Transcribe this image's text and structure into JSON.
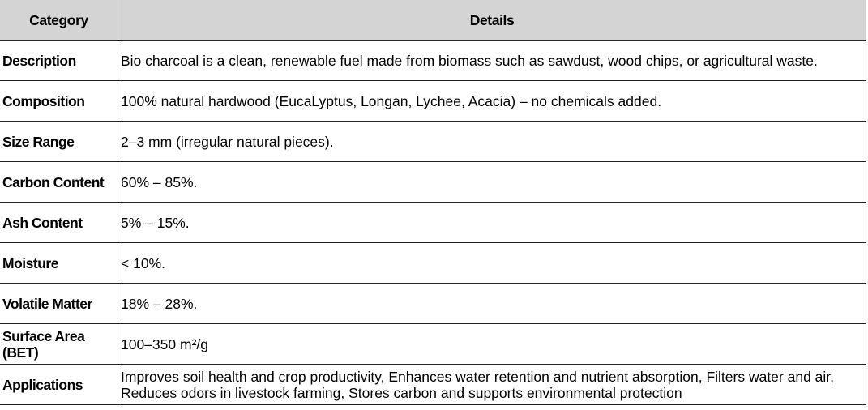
{
  "header": {
    "category": "Category",
    "details": "Details"
  },
  "rows": [
    {
      "category": "Description",
      "details": "Bio charcoal is a clean, renewable fuel made from biomass such as sawdust, wood chips, or agricultural waste."
    },
    {
      "category": "Composition",
      "details": "100% natural hardwood (EucaLyptus, Longan, Lychee, Acacia) – no chemicals added."
    },
    {
      "category": "Size Range",
      "details": "2–3 mm (irregular natural pieces)."
    },
    {
      "category": "Carbon Content",
      "details": "60% – 85%."
    },
    {
      "category": "Ash Content",
      "details": "5% – 15%."
    },
    {
      "category": "Moisture",
      "details": "< 10%."
    },
    {
      "category": "Volatile Matter",
      "details": "18% – 28%."
    },
    {
      "category": "Surface Area (BET)",
      "details": "100–350 m²/g"
    },
    {
      "category": "Applications",
      "details": "Improves soil health and crop productivity, Enhances water retention and nutrient absorption, Filters water and air, Reduces odors in livestock farming, Stores carbon and supports environmental protection"
    }
  ],
  "colors": {
    "header_bg": "#d4d4d4",
    "border": "#222222"
  }
}
